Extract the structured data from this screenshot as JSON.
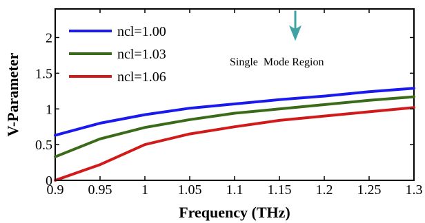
{
  "chart_data": {
    "type": "line",
    "title": "",
    "xlabel": "Frequency (THz)",
    "ylabel": "V-Parameter",
    "xlim": [
      0.9,
      1.3
    ],
    "ylim": [
      0,
      2.4
    ],
    "xticks": [
      0.9,
      0.95,
      1.0,
      1.05,
      1.1,
      1.15,
      1.2,
      1.25,
      1.3
    ],
    "xtick_labels": [
      "0.9",
      "0.95",
      "1",
      "1.05",
      "1.1",
      "1.15",
      "1.2",
      "1.25",
      "1.3"
    ],
    "yticks": [
      0,
      0.5,
      1.0,
      1.5,
      2.0
    ],
    "ytick_labels": [
      "0",
      "0.5",
      "1",
      "1.5",
      "2"
    ],
    "grid": false,
    "legend_position": "top-left",
    "x": [
      0.9,
      0.95,
      1.0,
      1.05,
      1.1,
      1.15,
      1.2,
      1.25,
      1.3
    ],
    "series": [
      {
        "name": "ncl=1.00",
        "color": "#1a1aee",
        "values": [
          0.63,
          0.8,
          0.92,
          1.01,
          1.07,
          1.13,
          1.18,
          1.24,
          1.29
        ]
      },
      {
        "name": "ncl=1.03",
        "color": "#3a6b18",
        "values": [
          0.33,
          0.58,
          0.74,
          0.85,
          0.94,
          1.0,
          1.06,
          1.12,
          1.17
        ]
      },
      {
        "name": "ncl=1.06",
        "color": "#d11a1a",
        "values": [
          0.0,
          0.22,
          0.5,
          0.65,
          0.75,
          0.84,
          0.9,
          0.96,
          1.02
        ]
      }
    ],
    "annotations": [
      {
        "text": "Single  Mode Region",
        "arrow": "down",
        "arrow_color": "#3fa3a3"
      }
    ]
  }
}
